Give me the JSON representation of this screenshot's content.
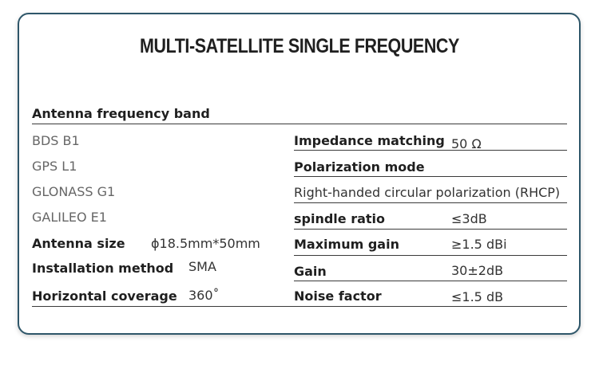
{
  "title": "MULTI-SATELLITE SINGLE FREQUENCY",
  "left": {
    "band_header": "Antenna frequency band",
    "bands": [
      "BDS B1",
      "GPS L1",
      "GLONASS G1",
      "GALILEO E1"
    ],
    "specs": [
      {
        "label": "Antenna size",
        "value": "ϕ18.5mm*50mm"
      },
      {
        "label": "Installation method",
        "value": "SMA"
      },
      {
        "label": "Horizontal coverage",
        "value": "360˚"
      }
    ]
  },
  "right": {
    "impedance": {
      "label": "Impedance matching",
      "value": "50 Ω"
    },
    "polarization": {
      "label": "Polarization mode",
      "value": "Right-handed circular polarization (RHCP)"
    },
    "specs": [
      {
        "label": "spindle ratio",
        "value": "≤3dB"
      },
      {
        "label": "Maximum gain",
        "value": "≥1.5 dBi"
      },
      {
        "label": "Gain",
        "value": "30±2dB"
      },
      {
        "label": "Noise factor",
        "value": "≤1.5 dB"
      }
    ]
  },
  "colors": {
    "border": "#2e5669",
    "text": "#1f1f1f",
    "muted": "#666666"
  }
}
